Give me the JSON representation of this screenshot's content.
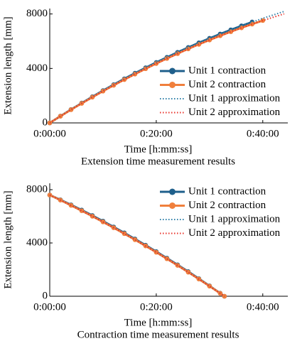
{
  "chart_data": [
    {
      "type": "line",
      "title": "Extension time measurement results",
      "xlabel": "Time [h:mm:ss]",
      "ylabel": "Extension length [mm]",
      "xlim": [
        0,
        44.7
      ],
      "ylim": [
        0,
        8400
      ],
      "xticks": [
        {
          "value": 0,
          "label": "0:00:00"
        },
        {
          "value": 20,
          "label": "0:20:00"
        },
        {
          "value": 40,
          "label": "0:40:00"
        }
      ],
      "yticks": [
        0,
        4000,
        8000
      ],
      "legend": "lower right",
      "series": [
        {
          "name": "Unit 1 contraction",
          "color": "#1f5f8b",
          "style": "solid",
          "marker": true,
          "x": [
            0,
            2,
            4,
            6,
            8,
            10,
            12,
            14,
            16,
            18,
            20,
            22,
            24,
            26,
            28,
            30,
            32,
            34,
            36,
            38
          ],
          "values": [
            0,
            498,
            984,
            1458,
            1920,
            2370,
            2808,
            3234,
            3648,
            4050,
            4440,
            4818,
            5184,
            5538,
            5880,
            6210,
            6528,
            6834,
            7128,
            7410
          ]
        },
        {
          "name": "Unit 2 contraction",
          "color": "#f07f3c",
          "style": "solid",
          "marker": true,
          "x": [
            0,
            2,
            4,
            6,
            8,
            10,
            12,
            14,
            16,
            18,
            20,
            22,
            24,
            26,
            28,
            30,
            32,
            34,
            36,
            38,
            40
          ],
          "values": [
            0,
            490,
            968,
            1434,
            1888,
            2330,
            2760,
            3178,
            3584,
            3978,
            4360,
            4730,
            5088,
            5434,
            5768,
            6090,
            6400,
            6698,
            6984,
            7258,
            7520
          ]
        },
        {
          "name": "Unit 1 approximation",
          "color": "#2e7fa8",
          "style": "dotted",
          "marker": false,
          "x": [
            0,
            4,
            8,
            12,
            16,
            20,
            24,
            28,
            32,
            36,
            40,
            44
          ],
          "values": [
            0,
            984,
            1920,
            2808,
            3648,
            4440,
            5184,
            5880,
            6528,
            7128,
            7680,
            8184
          ]
        },
        {
          "name": "Unit 2 approximation",
          "color": "#e8322a",
          "style": "dotted",
          "marker": false,
          "x": [
            0,
            4,
            8,
            12,
            16,
            20,
            24,
            28,
            32,
            36,
            40,
            44
          ],
          "values": [
            0,
            968,
            1888,
            2760,
            3584,
            4360,
            5088,
            5768,
            6400,
            6984,
            7520,
            8008
          ]
        }
      ]
    },
    {
      "type": "line",
      "title": "Contraction time measurement results",
      "xlabel": "Time [h:mm:ss]",
      "ylabel": "Extension length [mm]",
      "xlim": [
        0,
        44.7
      ],
      "ylim": [
        0,
        8480
      ],
      "xticks": [
        {
          "value": 0,
          "label": "0:00:00"
        },
        {
          "value": 20,
          "label": "0:20:00"
        },
        {
          "value": 40,
          "label": "0:40:00"
        }
      ],
      "yticks": [
        0,
        4000,
        8000
      ],
      "legend": "upper right",
      "series": [
        {
          "name": "Unit 1 contraction",
          "color": "#1f5f8b",
          "style": "solid",
          "marker": true,
          "x": [
            0,
            2,
            4,
            6,
            8,
            10,
            12,
            14,
            16,
            18,
            20,
            22,
            24,
            26,
            28,
            30,
            32,
            32.8
          ],
          "values": [
            7600,
            7240,
            6860,
            6470,
            6060,
            5640,
            5200,
            4760,
            4300,
            3830,
            3350,
            2860,
            2360,
            1850,
            1320,
            780,
            230,
            0
          ]
        },
        {
          "name": "Unit 2 contraction",
          "color": "#f07f3c",
          "style": "solid",
          "marker": true,
          "x": [
            0,
            2,
            4,
            6,
            8,
            10,
            12,
            14,
            16,
            18,
            20,
            22,
            24,
            26,
            28,
            30,
            32,
            32.8
          ],
          "values": [
            7600,
            7217,
            6824,
            6420,
            6005,
            5581,
            5145,
            4700,
            4244,
            3777,
            3300,
            2813,
            2315,
            1806,
            1288,
            759,
            219,
            0
          ]
        },
        {
          "name": "Unit 1 approximation",
          "color": "#2e7fa8",
          "style": "dotted",
          "marker": false,
          "x": [
            0,
            4,
            8,
            12,
            16,
            20,
            24,
            28,
            32,
            32.8
          ],
          "values": [
            7600,
            6824,
            6005,
            5145,
            4244,
            3300,
            2315,
            1288,
            219,
            0
          ]
        },
        {
          "name": "Unit 2 approximation",
          "color": "#e8322a",
          "style": "dotted",
          "marker": false,
          "x": [
            0,
            4,
            8,
            12,
            16,
            20,
            24,
            28,
            32,
            32.8
          ],
          "values": [
            7600,
            6824,
            6005,
            5145,
            4244,
            3300,
            2315,
            1288,
            219,
            0
          ]
        }
      ]
    }
  ]
}
